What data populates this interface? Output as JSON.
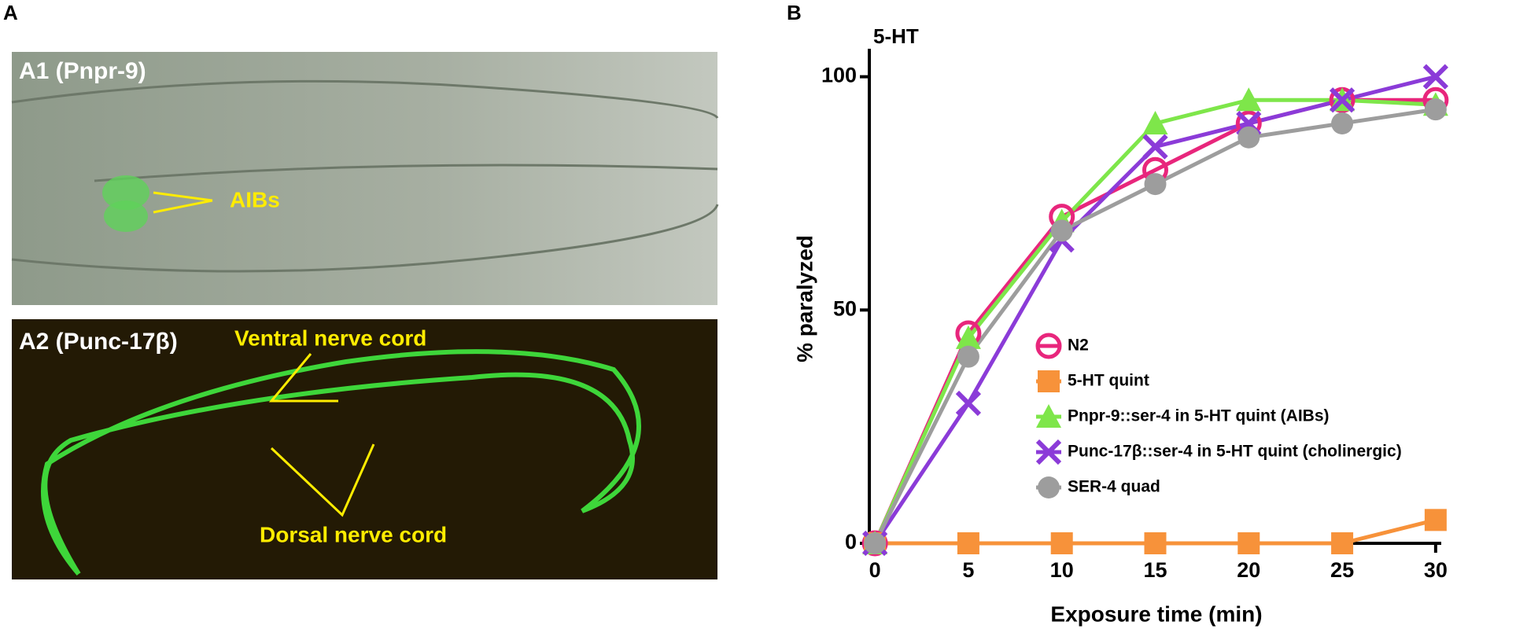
{
  "panel_a": {
    "label": "A",
    "a1": {
      "label": "A1 (Pnpr-9)",
      "annotation": "AIBs"
    },
    "a2": {
      "label": "A2 (Punc-17β)",
      "annotations": [
        "Ventral nerve cord",
        "Dorsal nerve cord"
      ]
    }
  },
  "chart_data": {
    "type": "line",
    "panel_label": "B",
    "title": "5-HT",
    "x_label": "Exposure time (min)",
    "y_label": "% paralyzed",
    "x": [
      0,
      5,
      10,
      15,
      20,
      25,
      30
    ],
    "xlim": [
      -0.3,
      30.3
    ],
    "ylim": [
      0,
      106
    ],
    "xticks": [
      0,
      5,
      10,
      15,
      20,
      25,
      30
    ],
    "yticks": [
      0,
      50,
      100
    ],
    "series": [
      {
        "name": "N2",
        "color": "#e8267c",
        "marker": "open-circle",
        "values": [
          0,
          45,
          70,
          80,
          90,
          95,
          95
        ]
      },
      {
        "name": "5-HT quint",
        "color": "#f7923a",
        "marker": "square",
        "values": [
          0,
          0,
          0,
          0,
          0,
          0,
          5
        ]
      },
      {
        "name": "Pnpr-9::ser-4 in 5-HT quint (AIBs)",
        "color": "#7ee64a",
        "marker": "triangle",
        "values": [
          0,
          44,
          69,
          90,
          95,
          95,
          94
        ]
      },
      {
        "name": "Punc-17β::ser-4 in 5-HT quint (cholinergic)",
        "color": "#8b3bd8",
        "marker": "cross",
        "values": [
          0,
          30,
          65,
          85,
          90,
          95,
          100
        ]
      },
      {
        "name": "SER-4 quad",
        "color": "#9d9d9d",
        "marker": "circle",
        "values": [
          0,
          40,
          67,
          77,
          87,
          90,
          93
        ]
      }
    ]
  }
}
